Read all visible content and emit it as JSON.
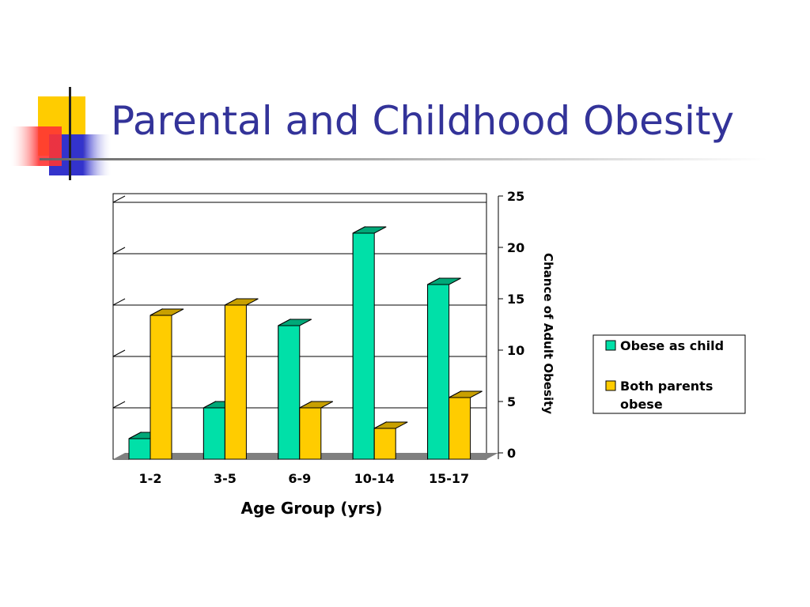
{
  "slide": {
    "title": "Parental and Childhood Obesity"
  },
  "colors": {
    "title": "#333399",
    "deco_yellow": "#FFCC00",
    "deco_red": "#FF3333",
    "deco_blue": "#3333CC",
    "series_child_front": "#00E0A8",
    "series_child_side": "#00A878",
    "series_parents_front": "#FFCC00",
    "series_parents_side": "#C8A000",
    "floor": "#808080"
  },
  "chart_data": {
    "type": "bar",
    "style": "3d-clustered-column",
    "title": "",
    "xlabel": "Age Group (yrs)",
    "ylabel": "Chance of Adult Obesity",
    "categories": [
      "1-2",
      "3-5",
      "6-9",
      "10-14",
      "15-17"
    ],
    "series": [
      {
        "name": "Obese as child",
        "values": [
          2,
          5,
          13,
          22,
          17
        ],
        "color": "#00E0A8"
      },
      {
        "name": "Both parents obese",
        "values": [
          14,
          15,
          5,
          3,
          6
        ],
        "color": "#FFCC00"
      }
    ],
    "ylim": [
      0,
      25
    ],
    "yticks": [
      "0",
      "5",
      "10",
      "15",
      "20",
      "25"
    ],
    "y_axis_side": "right",
    "grid": true,
    "legend": "right"
  }
}
